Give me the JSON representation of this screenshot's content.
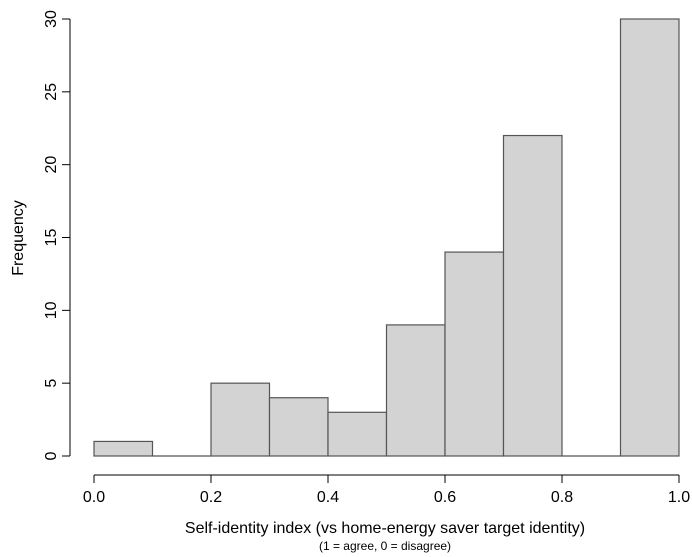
{
  "chart_data": {
    "type": "bar",
    "subtype": "histogram",
    "xlabel": "Self-identity index (vs home-energy saver target identity)",
    "xlabel_note": "(1 = agree, 0 = disagree)",
    "ylabel": "Frequency",
    "bins": [
      {
        "x0": 0.0,
        "x1": 0.1,
        "count": 1
      },
      {
        "x0": 0.1,
        "x1": 0.2,
        "count": 0
      },
      {
        "x0": 0.2,
        "x1": 0.3,
        "count": 5
      },
      {
        "x0": 0.3,
        "x1": 0.4,
        "count": 4
      },
      {
        "x0": 0.4,
        "x1": 0.5,
        "count": 3
      },
      {
        "x0": 0.5,
        "x1": 0.6,
        "count": 9
      },
      {
        "x0": 0.6,
        "x1": 0.7,
        "count": 14
      },
      {
        "x0": 0.7,
        "x1": 0.8,
        "count": 22
      },
      {
        "x0": 0.8,
        "x1": 0.9,
        "count": 0
      },
      {
        "x0": 0.9,
        "x1": 1.0,
        "count": 30
      }
    ],
    "xlim": [
      0,
      1
    ],
    "ylim": [
      0,
      30
    ],
    "xticks": [
      "0.0",
      "0.2",
      "0.4",
      "0.6",
      "0.8",
      "1.0"
    ],
    "yticks": [
      "0",
      "5",
      "10",
      "15",
      "20",
      "25",
      "30"
    ],
    "bar_fill": "#d3d3d3",
    "bar_stroke": "#555555",
    "grid": false
  }
}
